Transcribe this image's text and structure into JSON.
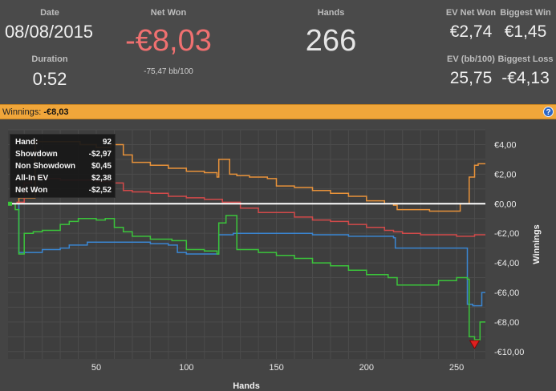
{
  "stats": {
    "date_label": "Date",
    "date_value": "08/08/2015",
    "duration_label": "Duration",
    "duration_value": "0:52",
    "net_won_label": "Net Won",
    "net_won_value": "-€8,03",
    "net_won_bb": "-75,47 bb/100",
    "hands_label": "Hands",
    "hands_value": "266",
    "ev_net_won_label": "EV Net Won",
    "ev_net_won_value": "€2,74",
    "biggest_win_label": "Biggest Win",
    "biggest_win_value": "€1,45",
    "ev_bb_label": "EV (bb/100)",
    "ev_bb_value": "25,75",
    "biggest_loss_label": "Biggest Loss",
    "biggest_loss_value": "-€4,13"
  },
  "section_bar": {
    "label": "Winnings:",
    "value": "-€8,03",
    "help_icon": "help-icon"
  },
  "tooltip": {
    "hand_label": "Hand:",
    "hand_value": "92",
    "showdown_label": "Showdown",
    "showdown_value": "-$2,97",
    "non_showdown_label": "Non Showdown",
    "non_showdown_value": "$0,45",
    "allin_ev_label": "All-In EV",
    "allin_ev_value": "$2,38",
    "net_won_label": "Net Won",
    "net_won_value": "-$2,52"
  },
  "colors": {
    "net_won": "#3bc43b",
    "all_in_ev": "#e8923a",
    "showdown": "#3a86d2",
    "non_showdown": "#d24a4a",
    "zero_line": "#ffffff",
    "marker": "#e02020",
    "header_bar": "#f0a63a",
    "net_won_text": "#f07070"
  },
  "chart_data": {
    "type": "line",
    "xlabel": "Hands",
    "ylabel": "Winnings",
    "xlim": [
      1,
      266
    ],
    "ylim": [
      -10.5,
      5
    ],
    "x_ticks": [
      50,
      100,
      150,
      200,
      250
    ],
    "y_ticks": [
      4,
      2,
      0,
      -2,
      -4,
      -6,
      -8,
      -10
    ],
    "y_tick_labels": [
      "€4,00",
      "€2,00",
      "€0,00",
      "-€2,00",
      "-€4,00",
      "-€6,00",
      "-€8,00",
      "-€10,00"
    ],
    "grid": true,
    "series": [
      {
        "key": "all_in_ev",
        "x": [
          1,
          6,
          7,
          15,
          16,
          40,
          41,
          50,
          58,
          65,
          70,
          80,
          90,
          100,
          110,
          117,
          118,
          124,
          128,
          135,
          145,
          150,
          160,
          170,
          180,
          190,
          200,
          210,
          215,
          217,
          225,
          235,
          245,
          252,
          256,
          257,
          259,
          260,
          262,
          266
        ],
        "values": [
          0,
          0,
          0.4,
          0.4,
          4.2,
          4.2,
          4.0,
          3.8,
          4.0,
          3.3,
          2.8,
          2.6,
          2.4,
          2.2,
          2.1,
          1.8,
          3.0,
          2.0,
          1.9,
          1.8,
          1.7,
          1.2,
          1.1,
          0.9,
          0.7,
          0.5,
          0.2,
          0.0,
          -0.1,
          -0.4,
          -0.4,
          -0.5,
          -0.5,
          0.0,
          0.0,
          1.8,
          1.8,
          2.6,
          2.7,
          2.7
        ]
      },
      {
        "key": "non_showdown",
        "x": [
          1,
          6,
          10,
          14,
          16,
          20,
          30,
          40,
          50,
          55,
          60,
          65,
          70,
          80,
          90,
          100,
          110,
          120,
          130,
          140,
          150,
          160,
          170,
          180,
          190,
          200,
          210,
          215,
          220,
          230,
          240,
          250,
          256,
          260,
          266
        ],
        "values": [
          0,
          0.1,
          1.4,
          1.8,
          1.8,
          1.7,
          1.6,
          1.6,
          1.5,
          1.5,
          1.4,
          0.9,
          0.8,
          0.7,
          0.5,
          0.4,
          0.3,
          0.1,
          -0.3,
          -0.6,
          -0.6,
          -0.9,
          -1.1,
          -1.2,
          -1.4,
          -1.6,
          -1.8,
          -1.9,
          -2.0,
          -2.1,
          -2.1,
          -2.2,
          -2.2,
          -2.1,
          -2.1
        ]
      },
      {
        "key": "showdown",
        "x": [
          1,
          6,
          7,
          12,
          20,
          30,
          35,
          45,
          60,
          80,
          90,
          95,
          100,
          117,
          118,
          125,
          126,
          160,
          170,
          190,
          215,
          216,
          255,
          256,
          258,
          259,
          264,
          266
        ],
        "values": [
          0,
          0,
          -3.3,
          -3.3,
          -3.1,
          -3.0,
          -2.8,
          -2.6,
          -2.6,
          -2.7,
          -2.8,
          -3.3,
          -3.4,
          -3.4,
          -2.1,
          -2.1,
          -2.0,
          -2.0,
          -2.1,
          -2.2,
          -2.3,
          -3.0,
          -3.0,
          -6.8,
          -6.8,
          -6.9,
          -6.0,
          -6.0
        ]
      },
      {
        "key": "net_won",
        "x": [
          1,
          5,
          7,
          10,
          15,
          20,
          30,
          35,
          40,
          50,
          55,
          60,
          65,
          70,
          80,
          90,
          92,
          100,
          110,
          117,
          118,
          122,
          126,
          128,
          140,
          150,
          160,
          170,
          180,
          190,
          200,
          212,
          217,
          225,
          240,
          250,
          256,
          257,
          260,
          263,
          266
        ],
        "values": [
          0,
          -0.4,
          -3.4,
          -2.0,
          -1.9,
          -1.8,
          -1.4,
          -1.2,
          -1.0,
          -1.1,
          -1.0,
          -1.6,
          -1.9,
          -2.2,
          -2.4,
          -2.4,
          -2.5,
          -3.1,
          -3.2,
          -3.4,
          -1.3,
          -0.8,
          -0.8,
          -3.1,
          -3.3,
          -3.5,
          -3.7,
          -4.0,
          -4.2,
          -4.5,
          -4.8,
          -5.0,
          -5.5,
          -5.5,
          -5.2,
          -5.0,
          -5.1,
          -9.0,
          -9.2,
          -8.0,
          -8.0
        ]
      }
    ]
  }
}
